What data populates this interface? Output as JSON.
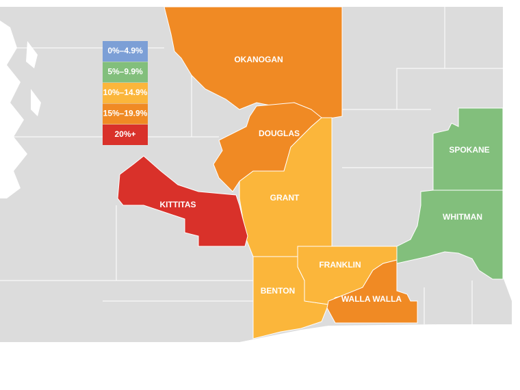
{
  "legend": [
    {
      "label": "0%–4.9%",
      "color": "#7c9fd6"
    },
    {
      "label": "5%–9.9%",
      "color": "#82bf7c"
    },
    {
      "label": "10%–14.9%",
      "color": "#fbb63b"
    },
    {
      "label": "15%–19.9%",
      "color": "#f08a24"
    },
    {
      "label": "20%+",
      "color": "#d9312a"
    }
  ],
  "counties": [
    {
      "name": "OKANOGAN",
      "color": "#f08a24"
    },
    {
      "name": "DOUGLAS",
      "color": "#f08a24"
    },
    {
      "name": "GRANT",
      "color": "#fbb63b"
    },
    {
      "name": "KITTITAS",
      "color": "#d9312a"
    },
    {
      "name": "BENTON",
      "color": "#fbb63b"
    },
    {
      "name": "FRANKLIN",
      "color": "#fbb63b"
    },
    {
      "name": "WALLA WALLA",
      "color": "#f08a24"
    },
    {
      "name": "SPOKANE",
      "color": "#82bf7c"
    },
    {
      "name": "WHITMAN",
      "color": "#82bf7c"
    }
  ]
}
